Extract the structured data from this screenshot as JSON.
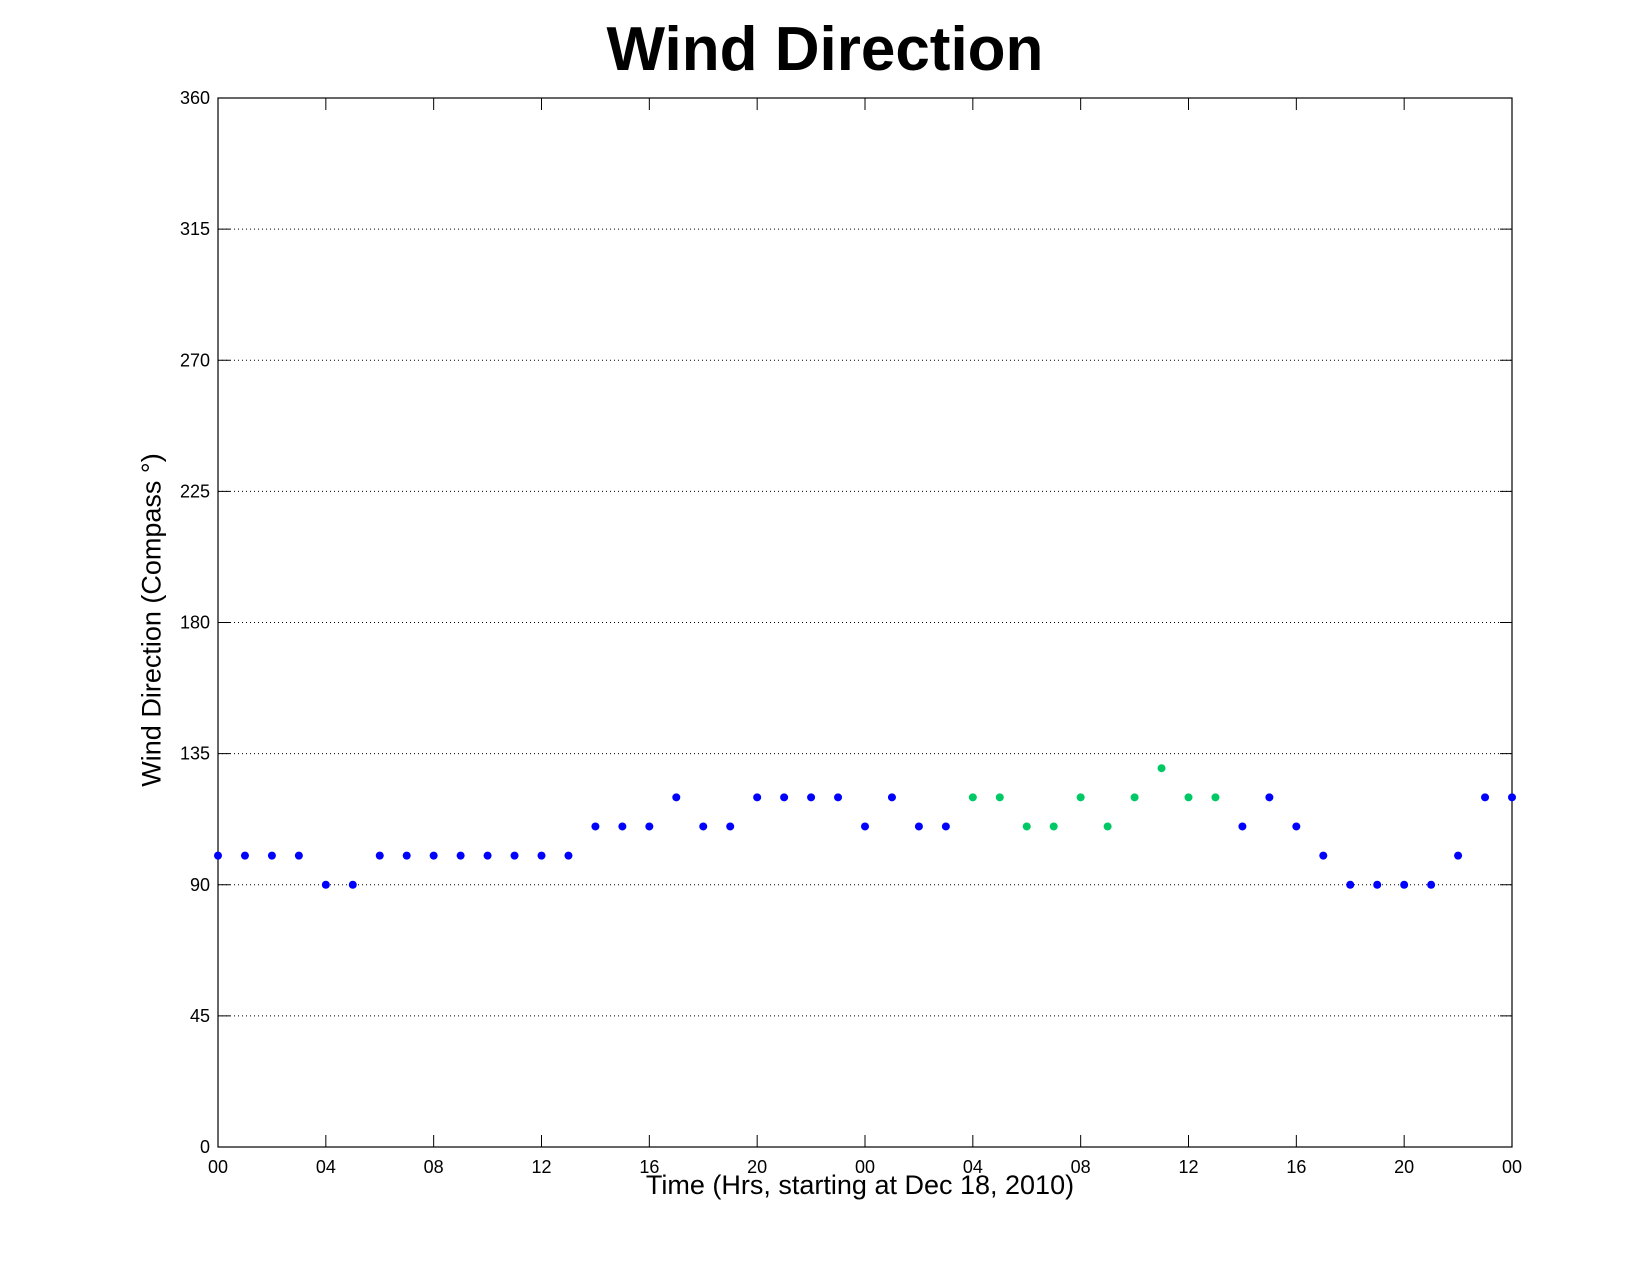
{
  "chart_data": {
    "type": "scatter",
    "title": "Wind Direction",
    "xlabel": "Time (Hrs, starting at Dec 18, 2010)",
    "ylabel": "Wind Direction (Compass  °)",
    "ylim": [
      0,
      360
    ],
    "yticks": [
      0,
      45,
      90,
      135,
      180,
      225,
      270,
      315,
      360
    ],
    "xlim": [
      "2010-12-18 00:00",
      "2010-12-20 00:00"
    ],
    "xticks": [
      {
        "x": "2010-12-18 00:00",
        "label": "00"
      },
      {
        "x": "2010-12-18 04:00",
        "label": "04"
      },
      {
        "x": "2010-12-18 08:00",
        "label": "08"
      },
      {
        "x": "2010-12-18 12:00",
        "label": "12"
      },
      {
        "x": "2010-12-18 16:00",
        "label": "16"
      },
      {
        "x": "2010-12-18 20:00",
        "label": "20"
      },
      {
        "x": "2010-12-19 00:00",
        "label": "00"
      },
      {
        "x": "2010-12-19 04:00",
        "label": "04"
      },
      {
        "x": "2010-12-19 08:00",
        "label": "08"
      },
      {
        "x": "2010-12-19 12:00",
        "label": "12"
      },
      {
        "x": "2010-12-19 16:00",
        "label": "16"
      },
      {
        "x": "2010-12-19 20:00",
        "label": "20"
      },
      {
        "x": "2010-12-20 00:00",
        "label": "00"
      }
    ],
    "grid": "y-dotted",
    "series": [
      {
        "color": "#0000ff",
        "points": [
          {
            "x": "2010-12-18 00:00",
            "y": 100
          },
          {
            "x": "2010-12-18 01:00",
            "y": 100
          },
          {
            "x": "2010-12-18 02:00",
            "y": 100
          },
          {
            "x": "2010-12-18 03:00",
            "y": 100
          },
          {
            "x": "2010-12-18 04:00",
            "y": 90
          },
          {
            "x": "2010-12-18 05:00",
            "y": 90
          },
          {
            "x": "2010-12-18 06:00",
            "y": 100
          },
          {
            "x": "2010-12-18 07:00",
            "y": 100
          },
          {
            "x": "2010-12-18 08:00",
            "y": 100
          },
          {
            "x": "2010-12-18 09:00",
            "y": 100
          },
          {
            "x": "2010-12-18 10:00",
            "y": 100
          },
          {
            "x": "2010-12-18 11:00",
            "y": 100
          },
          {
            "x": "2010-12-18 12:00",
            "y": 100
          },
          {
            "x": "2010-12-18 13:00",
            "y": 100
          },
          {
            "x": "2010-12-18 14:00",
            "y": 110
          },
          {
            "x": "2010-12-18 15:00",
            "y": 110
          },
          {
            "x": "2010-12-18 16:00",
            "y": 110
          },
          {
            "x": "2010-12-18 17:00",
            "y": 120
          },
          {
            "x": "2010-12-18 18:00",
            "y": 110
          },
          {
            "x": "2010-12-18 19:00",
            "y": 110
          },
          {
            "x": "2010-12-18 20:00",
            "y": 120
          },
          {
            "x": "2010-12-18 21:00",
            "y": 120
          },
          {
            "x": "2010-12-18 22:00",
            "y": 120
          },
          {
            "x": "2010-12-18 23:00",
            "y": 120
          },
          {
            "x": "2010-12-19 00:00",
            "y": 110
          },
          {
            "x": "2010-12-19 01:00",
            "y": 120
          },
          {
            "x": "2010-12-19 02:00",
            "y": 110
          },
          {
            "x": "2010-12-19 03:00",
            "y": 110
          },
          {
            "x": "2010-12-19 14:00",
            "y": 110
          },
          {
            "x": "2010-12-19 15:00",
            "y": 120
          },
          {
            "x": "2010-12-19 16:00",
            "y": 110
          },
          {
            "x": "2010-12-19 17:00",
            "y": 100
          },
          {
            "x": "2010-12-19 18:00",
            "y": 90
          },
          {
            "x": "2010-12-19 19:00",
            "y": 90
          },
          {
            "x": "2010-12-19 20:00",
            "y": 90
          },
          {
            "x": "2010-12-19 21:00",
            "y": 90
          },
          {
            "x": "2010-12-19 22:00",
            "y": 100
          },
          {
            "x": "2010-12-19 23:00",
            "y": 120
          },
          {
            "x": "2010-12-20 00:00",
            "y": 120
          }
        ]
      },
      {
        "color": "#00c864",
        "points": [
          {
            "x": "2010-12-19 04:00",
            "y": 120
          },
          {
            "x": "2010-12-19 05:00",
            "y": 120
          },
          {
            "x": "2010-12-19 06:00",
            "y": 110
          },
          {
            "x": "2010-12-19 07:00",
            "y": 110
          },
          {
            "x": "2010-12-19 08:00",
            "y": 120
          },
          {
            "x": "2010-12-19 09:00",
            "y": 110
          },
          {
            "x": "2010-12-19 10:00",
            "y": 120
          },
          {
            "x": "2010-12-19 11:00",
            "y": 130
          },
          {
            "x": "2010-12-19 12:00",
            "y": 120
          },
          {
            "x": "2010-12-19 13:00",
            "y": 120
          }
        ]
      }
    ]
  }
}
